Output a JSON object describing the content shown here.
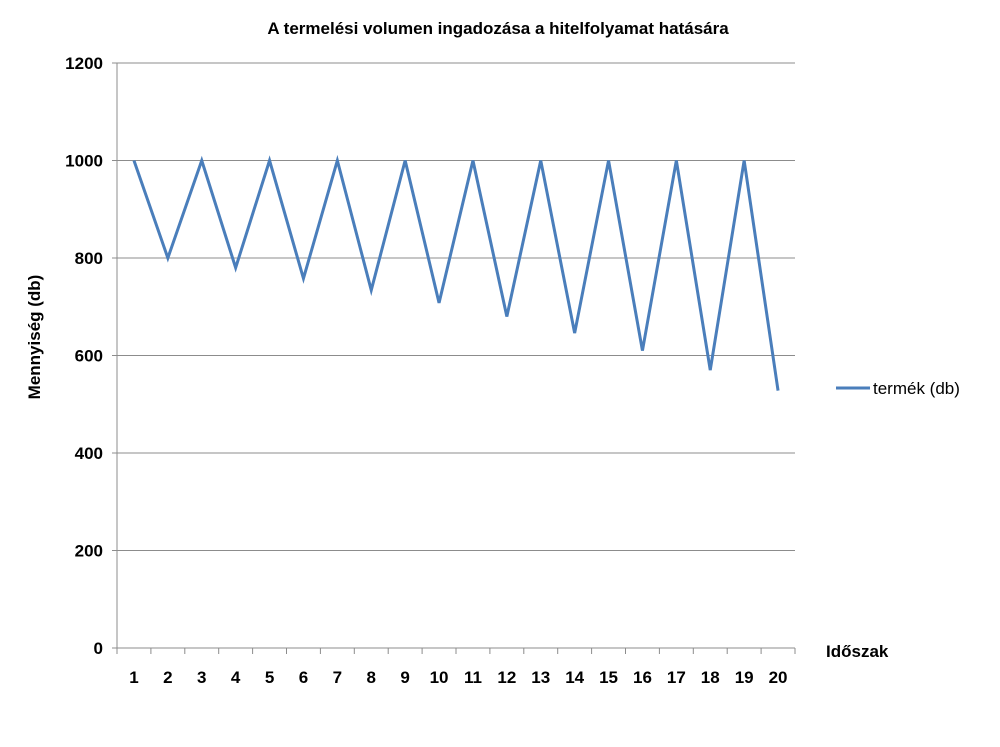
{
  "chart_data": {
    "type": "line",
    "title": "A termelési volumen ingadozása a hitelfolyamat hatására",
    "xlabel": "Időszak",
    "ylabel": "Mennyiség (db)",
    "ylim": [
      0,
      1200
    ],
    "yticks": [
      "0",
      "200",
      "400",
      "600",
      "800",
      "1000",
      "1200"
    ],
    "categories": [
      "1",
      "2",
      "3",
      "4",
      "5",
      "6",
      "7",
      "8",
      "9",
      "10",
      "11",
      "12",
      "13",
      "14",
      "15",
      "16",
      "17",
      "18",
      "19",
      "20"
    ],
    "series": [
      {
        "name": "termék (db)",
        "color": "#4a7ebb",
        "values": [
          1000,
          800,
          1000,
          780,
          1000,
          758,
          1000,
          734,
          1000,
          708,
          1000,
          680,
          1000,
          646,
          1000,
          610,
          1000,
          570,
          1000,
          528
        ]
      }
    ],
    "grid": "horizontal",
    "legend_position": "right"
  }
}
